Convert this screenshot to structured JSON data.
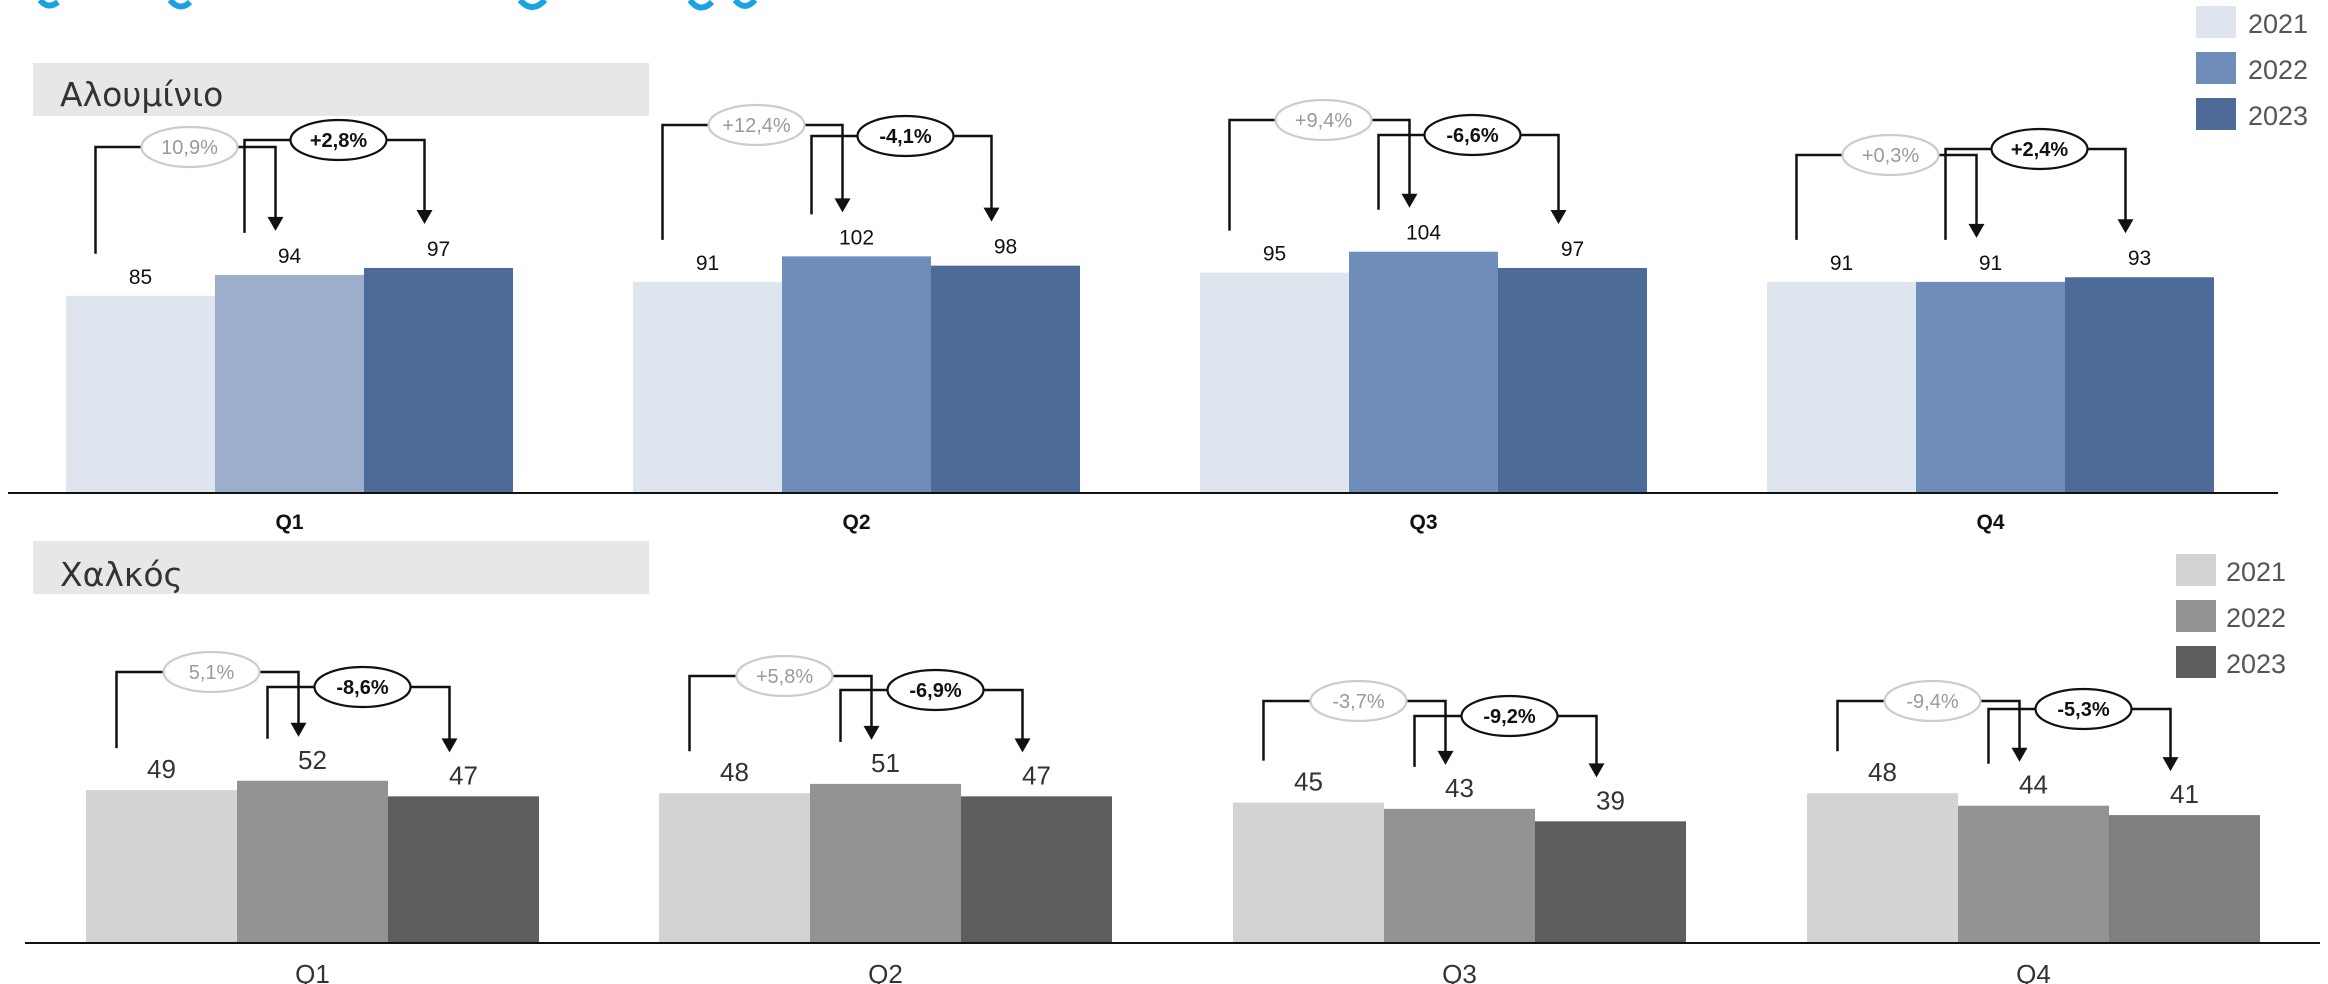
{
  "page": {
    "top_title_fragment": "",
    "title_color": "#1aa3e0"
  },
  "chart_data": [
    {
      "type": "bar",
      "title": "Αλουμίνιο",
      "categories": [
        "Q1",
        "Q2",
        "Q3",
        "Q4"
      ],
      "series": [
        {
          "name": "2021",
          "values": [
            85,
            91,
            95,
            91
          ]
        },
        {
          "name": "2022",
          "values": [
            94,
            102,
            104,
            91
          ]
        },
        {
          "name": "2023",
          "values": [
            97,
            98,
            97,
            93
          ]
        }
      ],
      "changes_prev": [
        "10,9%",
        "+12,4%",
        "+9,4%",
        "+0,3%"
      ],
      "changes_curr": [
        "+2,8%",
        "-4,1%",
        "-6,6%",
        "+2,4%"
      ],
      "legend": [
        "2021",
        "2022",
        "2023"
      ],
      "legend_position": "top-right",
      "ylim": [
        0,
        175
      ],
      "grid": false,
      "colors": {
        "2021": "#dfe5ef",
        "2022": "#6f8db9",
        "2022_q1": "#9caecc",
        "2023": "#4c6b99"
      }
    },
    {
      "type": "bar",
      "title": "Χαλκός",
      "categories": [
        "Q1",
        "Q2",
        "Q3",
        "Q4"
      ],
      "series": [
        {
          "name": "2021",
          "values": [
            49,
            48,
            45,
            48
          ]
        },
        {
          "name": "2022",
          "values": [
            52,
            51,
            43,
            44
          ]
        },
        {
          "name": "2023",
          "values": [
            47,
            47,
            39,
            41
          ]
        }
      ],
      "changes_prev": [
        "5,1%",
        "+5,8%",
        "-3,7%",
        "-9,4%"
      ],
      "changes_curr": [
        "-8,6%",
        "-6,9%",
        "-9,2%",
        "-5,3%"
      ],
      "legend": [
        "2021",
        "2022",
        "2023"
      ],
      "legend_position": "top-right",
      "ylim": [
        0,
        90
      ],
      "grid": false,
      "colors": {
        "2021": "#d3d3d3",
        "2022": "#939393",
        "2023": "#5e5e5e",
        "2023_q4": "#7f7f7f"
      }
    }
  ]
}
